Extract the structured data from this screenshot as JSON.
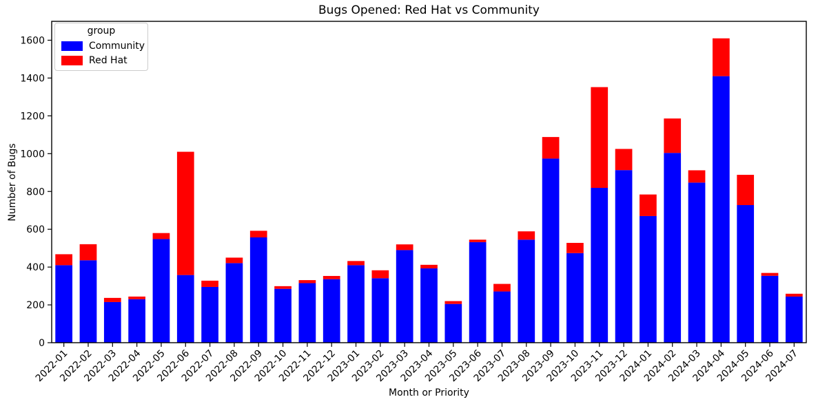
{
  "chart_data": {
    "type": "bar",
    "stacked": true,
    "title": "Bugs Opened: Red Hat vs Community",
    "xlabel": "Month or Priority",
    "ylabel": "Number of Bugs",
    "ylim": [
      0,
      1700
    ],
    "yticks": [
      0,
      200,
      400,
      600,
      800,
      1000,
      1200,
      1400,
      1600
    ],
    "grid": false,
    "legend": {
      "title": "group",
      "position": "upper left"
    },
    "categories": [
      "2022-01",
      "2022-02",
      "2022-03",
      "2022-04",
      "2022-05",
      "2022-06",
      "2022-07",
      "2022-08",
      "2022-09",
      "2022-10",
      "2022-11",
      "2022-12",
      "2023-01",
      "2023-02",
      "2023-03",
      "2023-04",
      "2023-05",
      "2023-06",
      "2023-07",
      "2023-08",
      "2023-09",
      "2023-10",
      "2023-11",
      "2023-12",
      "2024-01",
      "2024-02",
      "2024-03",
      "2024-04",
      "2024-05",
      "2024-06",
      "2024-07"
    ],
    "series": [
      {
        "name": "Community",
        "color": "#0000ff",
        "values": [
          410,
          436,
          215,
          230,
          548,
          358,
          295,
          421,
          557,
          285,
          315,
          336,
          410,
          341,
          490,
          393,
          205,
          532,
          271,
          545,
          974,
          474,
          819,
          913,
          670,
          1004,
          847,
          1410,
          728,
          354,
          244
        ]
      },
      {
        "name": "Red Hat",
        "color": "#ff0000",
        "values": [
          58,
          85,
          22,
          14,
          32,
          652,
          33,
          29,
          35,
          14,
          16,
          17,
          22,
          42,
          30,
          19,
          15,
          13,
          40,
          44,
          114,
          54,
          533,
          112,
          114,
          182,
          65,
          200,
          160,
          15,
          15
        ]
      }
    ],
    "axis_color": "#000000",
    "tick_font_size": 14
  }
}
